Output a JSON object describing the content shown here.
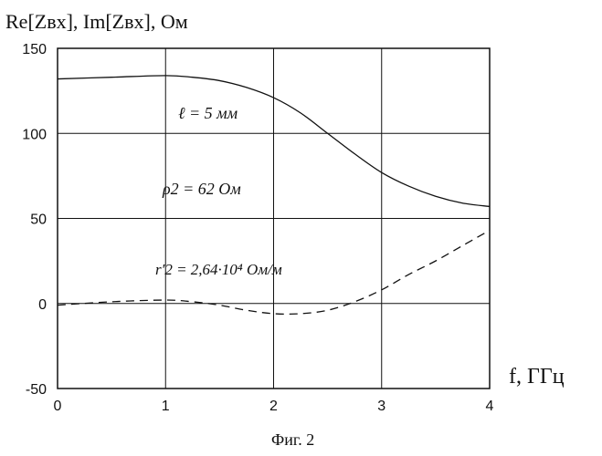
{
  "chart_data": {
    "type": "line",
    "ylabel": "Re[Zвх], Im[Zвх], Ом",
    "xlabel": "f, ГГц",
    "caption": "Фиг. 2",
    "xlim": [
      0,
      4
    ],
    "ylim": [
      -50,
      150
    ],
    "xticks": [
      "0",
      "1",
      "2",
      "3",
      "4"
    ],
    "yticks": [
      "150",
      "100",
      "50",
      "0",
      "-50"
    ],
    "grid": true,
    "annotations": [
      "ℓ = 5 мм",
      "ρ2 = 62 Ом",
      "r′2 = 2,64·10⁴ Ом/м"
    ],
    "series": [
      {
        "style": "solid",
        "x": [
          0,
          0.5,
          1.0,
          1.25,
          1.5,
          1.75,
          2.0,
          2.25,
          2.5,
          2.75,
          3.0,
          3.25,
          3.5,
          3.75,
          4.0
        ],
        "y": [
          132,
          133,
          134,
          133,
          131,
          127,
          121,
          112,
          100,
          88,
          77,
          69,
          63,
          59,
          57
        ]
      },
      {
        "style": "dashed",
        "x": [
          0,
          0.5,
          1.0,
          1.25,
          1.5,
          1.75,
          2.0,
          2.25,
          2.5,
          2.75,
          3.0,
          3.25,
          3.5,
          3.75,
          4.0
        ],
        "y": [
          -1,
          1,
          2,
          1,
          -1,
          -4,
          -6,
          -6,
          -4,
          1,
          8,
          17,
          25,
          34,
          43
        ]
      }
    ]
  }
}
